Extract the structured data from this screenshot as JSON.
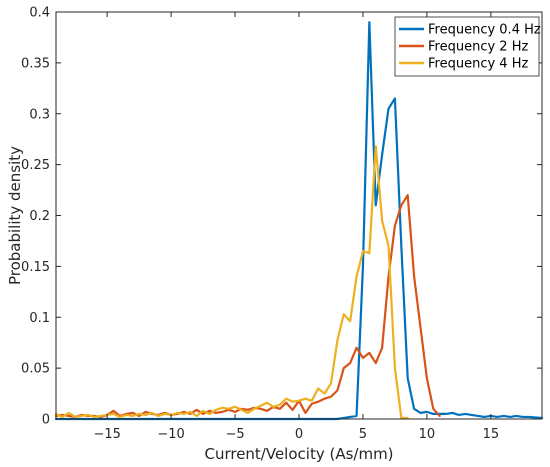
{
  "chart_data": {
    "type": "line",
    "xlabel": "Current/Velocity (As/mm)",
    "ylabel": "Probability density",
    "xlim": [
      -19,
      19
    ],
    "ylim": [
      0,
      0.4
    ],
    "xticks": [
      -15,
      -10,
      -5,
      0,
      5,
      10,
      15
    ],
    "xtick_labels": [
      "−15",
      "−10",
      "−5",
      "0",
      "5",
      "10",
      "15"
    ],
    "yticks": [
      0,
      0.05,
      0.1,
      0.15,
      0.2,
      0.25,
      0.3,
      0.35,
      0.4
    ],
    "ytick_labels": [
      "0",
      "0.05",
      "0.1",
      "0.15",
      "0.2",
      "0.25",
      "0.3",
      "0.35",
      "0.4"
    ],
    "grid": false,
    "legend_position": "top-right",
    "series": [
      {
        "name": "Frequency 0.4 Hz",
        "color": "#0072BD",
        "x": [
          -19,
          -10,
          -5,
          0,
          3,
          4.5,
          5,
          5.5,
          6,
          6.5,
          7,
          7.5,
          8,
          8.5,
          9,
          9.5,
          10,
          10.5,
          11,
          11.5,
          12,
          12.5,
          13,
          13.5,
          14,
          14.5,
          15,
          15.5,
          16,
          16.5,
          17,
          17.5,
          18,
          19
        ],
        "y": [
          0,
          0,
          0,
          0,
          0,
          0.003,
          0.15,
          0.39,
          0.21,
          0.26,
          0.305,
          0.315,
          0.17,
          0.04,
          0.01,
          0.006,
          0.007,
          0.005,
          0.005,
          0.005,
          0.006,
          0.004,
          0.005,
          0.004,
          0.003,
          0.002,
          0.003,
          0.002,
          0.003,
          0.002,
          0.003,
          0.002,
          0.002,
          0.001
        ]
      },
      {
        "name": "Frequency 2 Hz",
        "color": "#D95319",
        "x": [
          -19,
          -18.5,
          -18,
          -17.5,
          -17,
          -16.5,
          -16,
          -15.5,
          -15,
          -14.5,
          -14,
          -13.5,
          -13,
          -12.5,
          -12,
          -11.5,
          -11,
          -10.5,
          -10,
          -9.5,
          -9,
          -8.5,
          -8,
          -7.5,
          -7,
          -6.5,
          -6,
          -5.5,
          -5,
          -4.5,
          -4,
          -3.5,
          -3,
          -2.5,
          -2,
          -1.5,
          -1,
          -0.5,
          0,
          0.5,
          1,
          1.5,
          2,
          2.5,
          3,
          3.5,
          4,
          4.5,
          5,
          5.5,
          6,
          6.5,
          7,
          7.5,
          8,
          8.5,
          9,
          9.5,
          10,
          10.5,
          11
        ],
        "y": [
          0.003,
          0.004,
          0.003,
          0.002,
          0.004,
          0.003,
          0.003,
          0.002,
          0.004,
          0.008,
          0.003,
          0.005,
          0.006,
          0.003,
          0.007,
          0.005,
          0.004,
          0.006,
          0.004,
          0.005,
          0.007,
          0.005,
          0.009,
          0.005,
          0.008,
          0.006,
          0.007,
          0.009,
          0.007,
          0.01,
          0.009,
          0.011,
          0.01,
          0.008,
          0.012,
          0.01,
          0.016,
          0.009,
          0.018,
          0.006,
          0.015,
          0.017,
          0.02,
          0.022,
          0.028,
          0.05,
          0.055,
          0.07,
          0.06,
          0.065,
          0.055,
          0.07,
          0.14,
          0.19,
          0.21,
          0.22,
          0.14,
          0.09,
          0.04,
          0.01,
          0.003
        ]
      },
      {
        "name": "Frequency 4 Hz",
        "color": "#EDB120",
        "x": [
          -19,
          -18.5,
          -18,
          -17.5,
          -17,
          -16.5,
          -16,
          -15.5,
          -15,
          -14.5,
          -14,
          -13.5,
          -13,
          -12.5,
          -12,
          -11.5,
          -11,
          -10.5,
          -10,
          -9.5,
          -9,
          -8.5,
          -8,
          -7.5,
          -7,
          -6.5,
          -6,
          -5.5,
          -5,
          -4.5,
          -4,
          -3.5,
          -3,
          -2.5,
          -2,
          -1.5,
          -1,
          -0.5,
          0,
          0.5,
          1,
          1.5,
          2,
          2.5,
          3,
          3.5,
          4,
          4.5,
          5,
          5.5,
          6,
          6.5,
          7,
          7.5,
          8,
          8.5
        ],
        "y": [
          0.005,
          0.002,
          0.006,
          0.002,
          0.003,
          0.004,
          0.002,
          0.003,
          0.004,
          0.005,
          0.002,
          0.004,
          0.003,
          0.005,
          0.004,
          0.006,
          0.003,
          0.005,
          0.004,
          0.006,
          0.005,
          0.007,
          0.003,
          0.008,
          0.005,
          0.009,
          0.011,
          0.01,
          0.012,
          0.009,
          0.006,
          0.01,
          0.013,
          0.016,
          0.012,
          0.014,
          0.02,
          0.017,
          0.018,
          0.02,
          0.018,
          0.03,
          0.025,
          0.035,
          0.077,
          0.103,
          0.096,
          0.14,
          0.165,
          0.163,
          0.268,
          0.195,
          0.17,
          0.05,
          0.001,
          0.001
        ]
      }
    ]
  }
}
